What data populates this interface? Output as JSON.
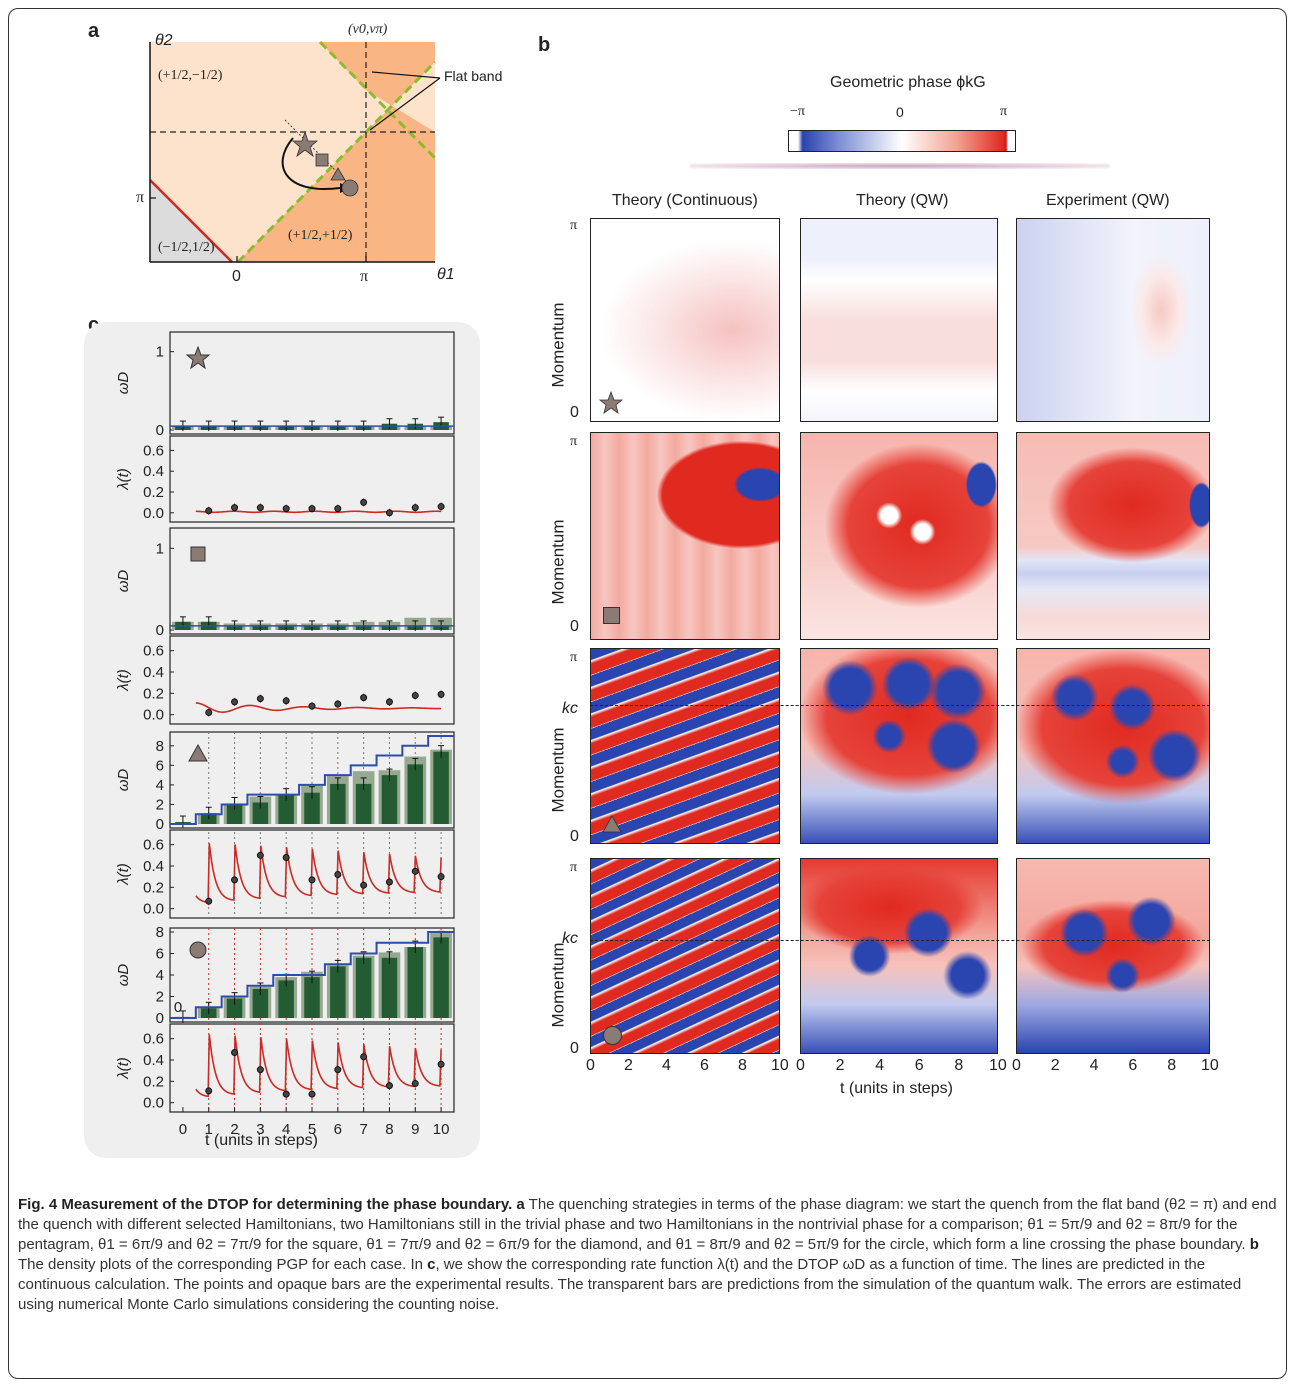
{
  "figure": {
    "panel_labels": {
      "a": "a",
      "b": "b",
      "c": "c"
    },
    "panel_a": {
      "y_axis_label": "θ2",
      "x_axis_label": "θ1",
      "top_label": "(v0,vπ)",
      "flat_band_label": "Flat band",
      "tick_pi_y": "π",
      "tick_0_x": "0",
      "tick_pi_x": "π",
      "region_top_left": "(+1/2,−1/2)",
      "region_bottom_left": "(−1/2,1/2)",
      "region_right": "(+1/2,+1/2)",
      "colors": {
        "light_region": "#fde2cc",
        "dark_region": "#f9b684",
        "gray_region": "#dcdcdc",
        "red_boundary": "#cc2a22",
        "green_boundary": "#8dbb2e"
      }
    },
    "panel_b": {
      "colorbar_title": "Geometric phase ϕkG",
      "colorbar_ticks": [
        "−π",
        "0",
        "π"
      ],
      "column_titles": [
        "Theory (Continuous)",
        "Theory (QW)",
        "Experiment (QW)"
      ],
      "y_axis_label": "Momentum",
      "y_ticks_top": "π",
      "y_ticks_bottom": "0",
      "kc_label": "kc",
      "x_ticks": [
        "0",
        "2",
        "4",
        "6",
        "8",
        "10"
      ],
      "x_axis_label": "t (units in steps)",
      "rows": [
        "star",
        "square",
        "triangle",
        "circle"
      ]
    },
    "panel_c": {
      "omega_label": "ωD",
      "lambda_label": "λ(t)",
      "x_axis_label": "t (units in steps)",
      "x_ticks": [
        "0",
        "1",
        "2",
        "3",
        "4",
        "5",
        "6",
        "7",
        "8",
        "9",
        "10"
      ],
      "omega_ticks_small": [
        "0",
        "1"
      ],
      "omega_ticks_large": [
        "0",
        "2",
        "4",
        "6",
        "8"
      ],
      "lambda_ticks": [
        "0.0",
        "0.2",
        "0.4",
        "0.6"
      ],
      "zero_label": "0",
      "colors": {
        "bar_exp": "#235c32",
        "bar_sim": "#96a88f",
        "line_omega": "#2c4ea8",
        "line_lambda": "#cc2a22",
        "dot": "#444444"
      }
    },
    "caption": {
      "lead": "Fig. 4 Measurement of the DTOP for determining the phase boundary.",
      "body": " The quenching strategies in terms of the phase diagram: we start the quench from the flat band (θ2 = π) and end the quench with different selected Hamiltonians, two Hamiltonians still in the trivial phase and two Hamiltonians in the nontrivial phase for a comparison; θ1 = 5π/9 and θ2 = 8π/9 for the pentagram, θ1 = 6π/9 and θ2 = 7π/9 for the square, θ1 = 7π/9 and θ2 = 6π/9 for the diamond, and θ1 = 8π/9 and θ2 = 5π/9 for the circle, which form a line crossing the phase boundary.",
      "b_lead": "b",
      "b_body": " The density plots of the corresponding PGP for each case. In ",
      "c_lead": "c",
      "c_body": ", we show the corresponding rate function λ(t) and the DTOP ωD as a function of time. The lines are predicted in the continuous calculation. The points and opaque bars are the experimental results. The transparent bars are predictions from the simulation of the quantum walk. The errors are estimated using numerical Monte Carlo simulations considering the counting noise."
    }
  },
  "chart_data": [
    {
      "type": "bar",
      "panel": "c-star-omega",
      "x": [
        0,
        1,
        2,
        3,
        4,
        5,
        6,
        7,
        8,
        9,
        10
      ],
      "series": [
        {
          "name": "experiment",
          "values": [
            0.05,
            0.05,
            0.05,
            0.05,
            0.05,
            0.05,
            0.05,
            0.05,
            0.08,
            0.08,
            0.1
          ]
        },
        {
          "name": "simulation",
          "values": [
            0.05,
            0.05,
            0.05,
            0.05,
            0.05,
            0.05,
            0.05,
            0.05,
            0.05,
            0.05,
            0.05
          ]
        }
      ],
      "ylim": [
        0,
        1.2
      ]
    },
    {
      "type": "line",
      "panel": "c-star-lambda",
      "points": [
        [
          1,
          0.02
        ],
        [
          2,
          0.05
        ],
        [
          3,
          0.05
        ],
        [
          4,
          0.04
        ],
        [
          5,
          0.04
        ],
        [
          6,
          0.04
        ],
        [
          7,
          0.1
        ],
        [
          8,
          0.0
        ],
        [
          9,
          0.05
        ],
        [
          10,
          0.06
        ]
      ],
      "ylim": [
        -0.05,
        0.7
      ]
    },
    {
      "type": "bar",
      "panel": "c-square-omega",
      "x": [
        0,
        1,
        2,
        3,
        4,
        5,
        6,
        7,
        8,
        9,
        10
      ],
      "series": [
        {
          "name": "experiment",
          "values": [
            0.1,
            0.1,
            0.05,
            0.05,
            0.05,
            0.05,
            0.05,
            0.05,
            0.05,
            0.05,
            0.05
          ]
        },
        {
          "name": "simulation",
          "values": [
            0.1,
            0.1,
            0.08,
            0.08,
            0.08,
            0.08,
            0.08,
            0.1,
            0.1,
            0.15,
            0.15
          ]
        }
      ],
      "ylim": [
        0,
        1.2
      ]
    },
    {
      "type": "line",
      "panel": "c-square-lambda",
      "points": [
        [
          1,
          0.02
        ],
        [
          2,
          0.12
        ],
        [
          3,
          0.15
        ],
        [
          4,
          0.13
        ],
        [
          5,
          0.08
        ],
        [
          6,
          0.1
        ],
        [
          7,
          0.16
        ],
        [
          8,
          0.12
        ],
        [
          9,
          0.18
        ],
        [
          10,
          0.19
        ]
      ],
      "ylim": [
        -0.05,
        0.7
      ]
    },
    {
      "type": "bar",
      "panel": "c-triangle-omega",
      "x": [
        0,
        1,
        2,
        3,
        4,
        5,
        6,
        7,
        8,
        9,
        10
      ],
      "series": [
        {
          "name": "experiment",
          "values": [
            0.2,
            1.1,
            2.1,
            2.2,
            3.0,
            3.2,
            4.1,
            4.1,
            5.0,
            6.1,
            7.4
          ]
        },
        {
          "name": "simulation",
          "values": [
            0.1,
            1.1,
            2.1,
            2.8,
            3.0,
            3.9,
            4.9,
            5.4,
            5.5,
            6.9,
            7.6
          ]
        },
        {
          "name": "prediction",
          "values": [
            0,
            1,
            2,
            3,
            3,
            4,
            5,
            6,
            7,
            8,
            9
          ]
        }
      ],
      "ylim": [
        0,
        9
      ]
    },
    {
      "type": "line",
      "panel": "c-triangle-lambda",
      "points": [
        [
          1,
          0.07
        ],
        [
          2,
          0.27
        ],
        [
          3,
          0.5
        ],
        [
          4,
          0.48
        ],
        [
          5,
          0.27
        ],
        [
          6,
          0.32
        ],
        [
          7,
          0.22
        ],
        [
          8,
          0.25
        ],
        [
          9,
          0.35
        ],
        [
          10,
          0.3
        ]
      ],
      "ylim": [
        -0.05,
        0.7
      ]
    },
    {
      "type": "bar",
      "panel": "c-circle-omega",
      "x": [
        0,
        1,
        2,
        3,
        4,
        5,
        6,
        7,
        8,
        9,
        10
      ],
      "series": [
        {
          "name": "experiment",
          "values": [
            0.1,
            0.9,
            1.8,
            2.7,
            3.5,
            3.8,
            4.8,
            5.6,
            5.6,
            6.6,
            7.5
          ]
        },
        {
          "name": "simulation",
          "values": [
            0.1,
            1.0,
            1.9,
            2.9,
            3.8,
            4.3,
            4.9,
            5.8,
            6.1,
            6.6,
            7.9
          ]
        },
        {
          "name": "prediction",
          "values": [
            0,
            1,
            2,
            3,
            4,
            4,
            5,
            6,
            7,
            7,
            8
          ]
        }
      ],
      "ylim": [
        0,
        8
      ]
    },
    {
      "type": "line",
      "panel": "c-circle-lambda",
      "points": [
        [
          1,
          0.11
        ],
        [
          2,
          0.47
        ],
        [
          3,
          0.31
        ],
        [
          4,
          0.08
        ],
        [
          5,
          0.08
        ],
        [
          6,
          0.31
        ],
        [
          7,
          0.43
        ],
        [
          8,
          0.16
        ],
        [
          9,
          0.18
        ],
        [
          10,
          0.36
        ]
      ],
      "ylim": [
        -0.05,
        0.7
      ]
    }
  ]
}
